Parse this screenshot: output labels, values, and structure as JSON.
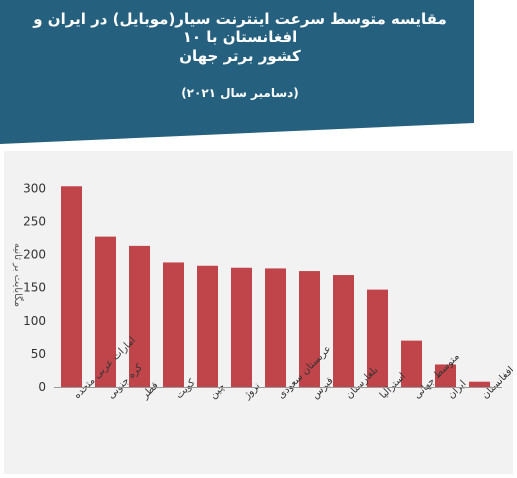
{
  "colors": {
    "header_bg": "#25617f",
    "bar": "#c0454a",
    "panel": "#f2f2f2",
    "axis": "#9a9a9a"
  },
  "chart_data": {
    "type": "bar",
    "title": "مقایسه متوسط سرعت اینترنت سیار(موبایل) در ایران و افغانستان با ۱۰",
    "title_line2": "کشور برتر جهان",
    "subtitle": "(دسامبر سال ۲۰۲۱)",
    "ylabel": "مگابایت بر ثانیه",
    "xlabel": "",
    "categories": [
      "امارات عربی متحده",
      "کره جنوبی",
      "قطر",
      "کویت",
      "چین",
      "نروژ",
      "عربستان سعودی",
      "قبرس",
      "بلغارستان",
      "استرالیا",
      "متوسط جهانی",
      "ایران",
      "افغانستان"
    ],
    "values": [
      303,
      227,
      213,
      188,
      183,
      180,
      179,
      175,
      169,
      147,
      70,
      34,
      8
    ],
    "ylim": [
      0,
      320
    ],
    "yticks": [
      "0",
      "50",
      "100",
      "150",
      "200",
      "250",
      "300"
    ],
    "grid": false,
    "legend": "none"
  }
}
